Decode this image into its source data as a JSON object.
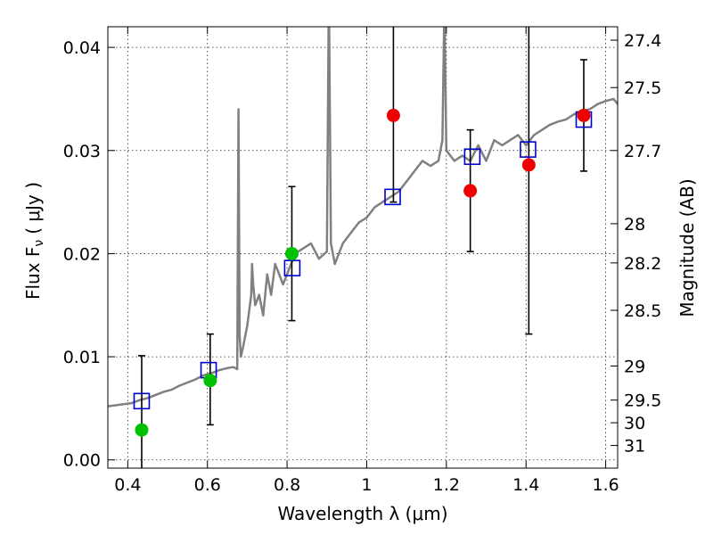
{
  "chart_data": {
    "type": "scatter",
    "xlabel": "Wavelength  λ (μm)",
    "ylabel": "Flux  F",
    "ylabel_sub": "ν",
    "ylabel_unit": "( μJy )",
    "y2label": "Magnitude (AB)",
    "xlim": [
      0.35,
      1.63
    ],
    "ylim": [
      -0.0008,
      0.042
    ],
    "x_ticks": [
      0.4,
      0.6,
      0.8,
      1.0,
      1.2,
      1.4,
      1.6
    ],
    "x_tick_labels": [
      "0.4",
      "0.6",
      "0.8",
      "1",
      "1.2",
      "1.4",
      "1.6"
    ],
    "y_ticks": [
      0.0,
      0.01,
      0.02,
      0.03,
      0.04
    ],
    "y_tick_labels": [
      "0.00",
      "0.01",
      "0.02",
      "0.03",
      "0.04"
    ],
    "y2_ticks": [
      {
        "label": "27.4",
        "flux": 0.0407
      },
      {
        "label": "27.5",
        "flux": 0.0361
      },
      {
        "label": "27.7",
        "flux": 0.03
      },
      {
        "label": "28",
        "flux": 0.0229
      },
      {
        "label": "28.2",
        "flux": 0.0191
      },
      {
        "label": "28.5",
        "flux": 0.0145
      },
      {
        "label": "29",
        "flux": 0.0091
      },
      {
        "label": "29.5",
        "flux": 0.0058
      },
      {
        "label": "30",
        "flux": 0.0036
      },
      {
        "label": "31",
        "flux": 0.0014
      }
    ],
    "grid": true,
    "colors": {
      "model": "#808080",
      "synthetic": "#0000cc",
      "green": "#00c000",
      "red": "#ee0000",
      "errorbar": "#000000"
    },
    "series": [
      {
        "kind": "line",
        "points": [
          [
            0.35,
            0.0052
          ],
          [
            0.37,
            0.0053
          ],
          [
            0.39,
            0.0054
          ],
          [
            0.41,
            0.0055
          ],
          [
            0.43,
            0.0058
          ],
          [
            0.45,
            0.006
          ],
          [
            0.47,
            0.0063
          ],
          [
            0.49,
            0.0066
          ],
          [
            0.51,
            0.0068
          ],
          [
            0.53,
            0.0072
          ],
          [
            0.55,
            0.0075
          ],
          [
            0.57,
            0.0078
          ],
          [
            0.59,
            0.0082
          ],
          [
            0.61,
            0.0084
          ],
          [
            0.63,
            0.0087
          ],
          [
            0.65,
            0.0089
          ],
          [
            0.665,
            0.009
          ],
          [
            0.675,
            0.0088
          ],
          [
            0.678,
            0.034
          ],
          [
            0.681,
            0.012
          ],
          [
            0.684,
            0.01
          ],
          [
            0.69,
            0.011
          ],
          [
            0.7,
            0.013
          ],
          [
            0.71,
            0.016
          ],
          [
            0.712,
            0.019
          ],
          [
            0.715,
            0.017
          ],
          [
            0.72,
            0.015
          ],
          [
            0.73,
            0.016
          ],
          [
            0.74,
            0.014
          ],
          [
            0.75,
            0.018
          ],
          [
            0.76,
            0.016
          ],
          [
            0.77,
            0.019
          ],
          [
            0.78,
            0.018
          ],
          [
            0.79,
            0.017
          ],
          [
            0.8,
            0.018
          ],
          [
            0.81,
            0.019
          ],
          [
            0.82,
            0.02
          ],
          [
            0.84,
            0.0205
          ],
          [
            0.86,
            0.021
          ],
          [
            0.88,
            0.0195
          ],
          [
            0.9,
            0.0202
          ],
          [
            0.905,
            0.046
          ],
          [
            0.91,
            0.021
          ],
          [
            0.92,
            0.019
          ],
          [
            0.94,
            0.021
          ],
          [
            0.96,
            0.022
          ],
          [
            0.98,
            0.023
          ],
          [
            1.0,
            0.0235
          ],
          [
            1.02,
            0.0245
          ],
          [
            1.04,
            0.025
          ],
          [
            1.06,
            0.0255
          ],
          [
            1.08,
            0.026
          ],
          [
            1.1,
            0.027
          ],
          [
            1.12,
            0.028
          ],
          [
            1.14,
            0.029
          ],
          [
            1.16,
            0.0285
          ],
          [
            1.18,
            0.029
          ],
          [
            1.19,
            0.031
          ],
          [
            1.195,
            0.044
          ],
          [
            1.2,
            0.03
          ],
          [
            1.22,
            0.029
          ],
          [
            1.24,
            0.0295
          ],
          [
            1.26,
            0.029
          ],
          [
            1.28,
            0.0305
          ],
          [
            1.3,
            0.029
          ],
          [
            1.32,
            0.031
          ],
          [
            1.34,
            0.0305
          ],
          [
            1.36,
            0.031
          ],
          [
            1.38,
            0.0315
          ],
          [
            1.4,
            0.0305
          ],
          [
            1.42,
            0.0315
          ],
          [
            1.44,
            0.032
          ],
          [
            1.46,
            0.0325
          ],
          [
            1.48,
            0.0328
          ],
          [
            1.5,
            0.033
          ],
          [
            1.52,
            0.0335
          ],
          [
            1.54,
            0.0338
          ],
          [
            1.56,
            0.034
          ],
          [
            1.58,
            0.0345
          ],
          [
            1.6,
            0.0348
          ],
          [
            1.62,
            0.035
          ],
          [
            1.63,
            0.0345
          ]
        ]
      },
      {
        "kind": "synthetic",
        "points": [
          [
            0.435,
            0.0057
          ],
          [
            0.603,
            0.0087
          ],
          [
            0.813,
            0.0186
          ],
          [
            1.065,
            0.0255
          ],
          [
            1.265,
            0.0294
          ],
          [
            1.405,
            0.0301
          ],
          [
            1.545,
            0.033
          ]
        ]
      },
      {
        "kind": "green",
        "points": [
          {
            "x": 0.435,
            "y": 0.0029,
            "lo": -0.004,
            "hi": 0.0101
          },
          {
            "x": 0.607,
            "y": 0.0077,
            "lo": 0.0034,
            "hi": 0.0122
          },
          {
            "x": 0.812,
            "y": 0.02,
            "lo": 0.0135,
            "hi": 0.0265
          }
        ]
      },
      {
        "kind": "red",
        "points": [
          {
            "x": 1.067,
            "y": 0.0334,
            "lo": 0.025,
            "hi": 0.05
          },
          {
            "x": 1.26,
            "y": 0.0261,
            "lo": 0.0202,
            "hi": 0.032
          },
          {
            "x": 1.407,
            "y": 0.0286,
            "lo": 0.0122,
            "hi": 0.05
          },
          {
            "x": 1.545,
            "y": 0.0334,
            "lo": 0.028,
            "hi": 0.0388
          }
        ]
      }
    ]
  }
}
